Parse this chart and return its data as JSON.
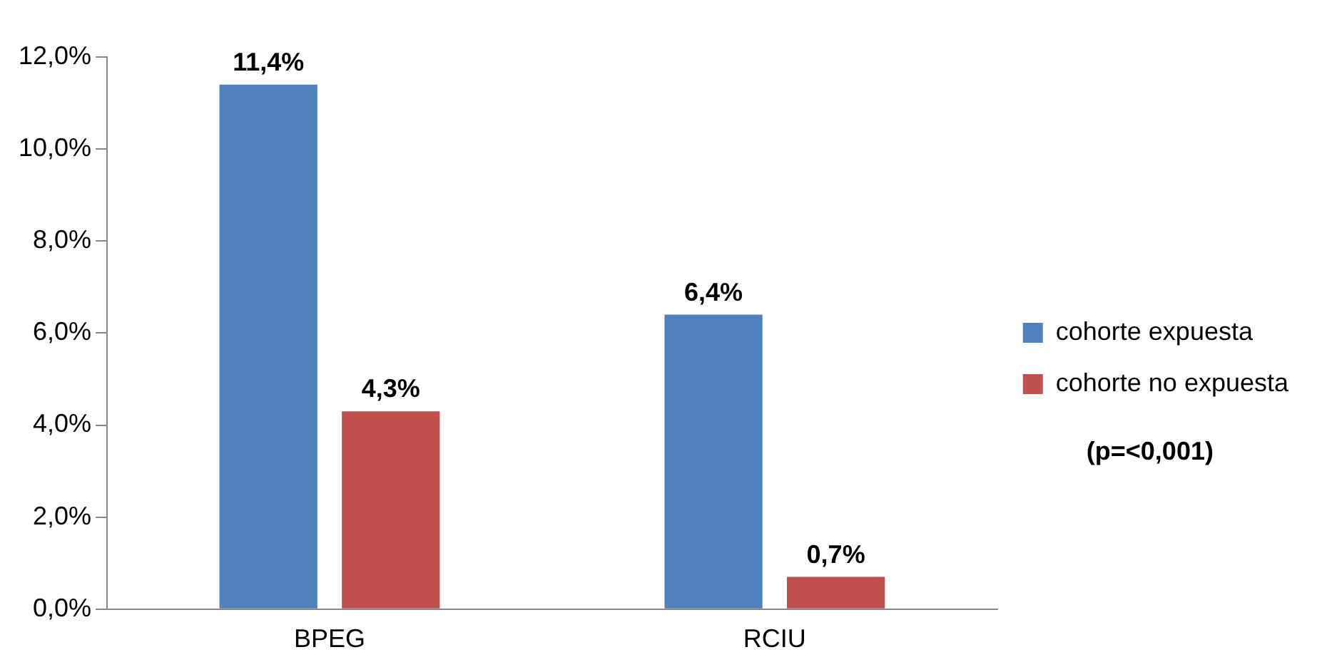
{
  "chart_data": {
    "type": "bar",
    "categories": [
      "BPEG",
      "RCIU"
    ],
    "series": [
      {
        "name": "cohorte expuesta",
        "color": "#4f81bd",
        "values": [
          11.4,
          6.4
        ],
        "value_labels": [
          "11,4%",
          "6,4%"
        ]
      },
      {
        "name": "cohorte no expuesta",
        "color": "#c0504d",
        "values": [
          4.3,
          0.7
        ],
        "value_labels": [
          "4,3%",
          "0,7%"
        ]
      }
    ],
    "ylim": [
      0,
      12
    ],
    "yticks": [
      {
        "value": 0,
        "label": "0,0%"
      },
      {
        "value": 2,
        "label": "2,0%"
      },
      {
        "value": 4,
        "label": "4,0%"
      },
      {
        "value": 6,
        "label": "6,0%"
      },
      {
        "value": 8,
        "label": "8,0%"
      },
      {
        "value": 10,
        "label": "10,0%"
      },
      {
        "value": 12,
        "label": "12,0%"
      }
    ],
    "grid": false,
    "legend": "right",
    "annotations": [
      "(p=<0,001)"
    ]
  }
}
